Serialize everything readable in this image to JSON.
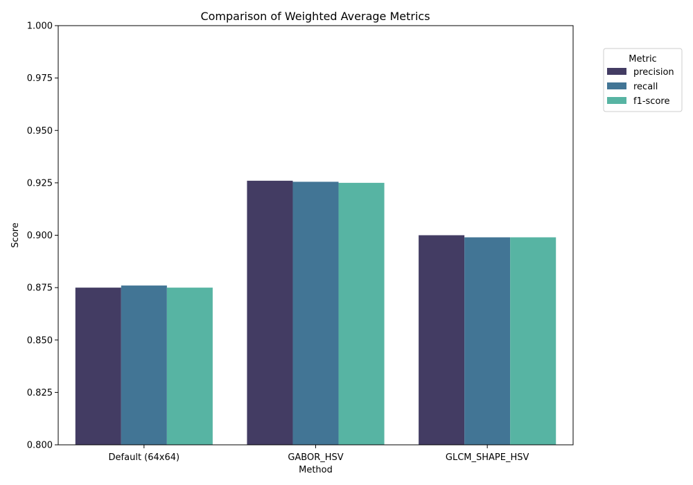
{
  "chart_data": {
    "type": "bar",
    "title": "Comparison of Weighted Average Metrics",
    "xlabel": "Method",
    "ylabel": "Score",
    "categories": [
      "Default (64x64)",
      "GABOR_HSV",
      "GLCM_SHAPE_HSV"
    ],
    "series": [
      {
        "name": "precision",
        "color": "#433c63",
        "values": [
          0.875,
          0.926,
          0.9
        ]
      },
      {
        "name": "recall",
        "color": "#427595",
        "values": [
          0.876,
          0.9255,
          0.899
        ]
      },
      {
        "name": "f1-score",
        "color": "#57b4a3",
        "values": [
          0.875,
          0.925,
          0.899
        ]
      }
    ],
    "ylim": [
      0.8,
      1.0
    ],
    "yticks": [
      "0.800",
      "0.825",
      "0.850",
      "0.875",
      "0.900",
      "0.925",
      "0.950",
      "0.975",
      "1.000"
    ],
    "grid": false,
    "legend": {
      "title": "Metric",
      "placement": "outside-top-right"
    }
  }
}
